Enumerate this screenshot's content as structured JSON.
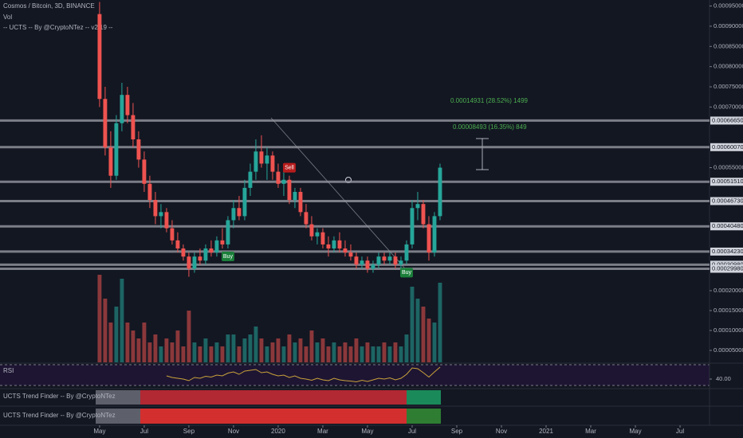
{
  "header": {
    "symbol": "Cosmos / Bitcoin, 3D, BINANCE",
    "vol": "Vol",
    "indicator": "-- UCTS -- By @CryptoNTez -- v2.19 --"
  },
  "chart_data": {
    "type": "candlestick",
    "x": [
      0,
      0.25,
      0.5,
      0.75,
      1,
      1.25,
      1.5,
      1.75,
      2,
      2.25,
      2.5,
      2.75,
      3,
      3.25,
      3.5,
      3.75,
      4,
      4.25,
      4.5,
      4.75,
      5,
      5.25,
      5.5,
      5.75,
      6,
      6.25,
      6.5,
      6.75,
      7,
      7.25,
      7.5,
      7.75,
      8,
      8.25,
      8.5,
      8.75,
      9,
      9.25,
      9.5,
      9.75,
      10,
      10.25,
      10.5,
      10.75,
      11,
      11.25,
      11.5,
      11.75,
      12,
      12.25,
      12.5,
      12.75,
      13,
      13.25,
      13.5,
      13.75,
      14,
      14.25,
      14.5,
      14.75,
      15,
      15.25
    ],
    "open": [
      0.00093,
      0.00072,
      0.0006,
      0.00053,
      0.00066,
      0.00073,
      0.00068,
      0.00062,
      0.00057,
      0.00051,
      0.00047,
      0.00043,
      0.00044,
      0.0004,
      0.00037,
      0.00035,
      0.00033,
      0.0003,
      0.00033,
      0.00032,
      0.00035,
      0.00034,
      0.00037,
      0.00036,
      0.00042,
      0.00045,
      0.00043,
      0.0005,
      0.00054,
      0.00059,
      0.00056,
      0.00058,
      0.00054,
      0.00051,
      0.00052,
      0.00047,
      0.00049,
      0.00044,
      0.00041,
      0.00038,
      0.00039,
      0.00036,
      0.00035,
      0.00037,
      0.00035,
      0.00034,
      0.00033,
      0.00031,
      0.00032,
      0.0003,
      0.00031,
      0.00033,
      0.00032,
      0.00033,
      0.00031,
      0.00032,
      0.00036,
      0.00045,
      0.00046,
      0.00041,
      0.00034,
      0.00043
    ],
    "high": [
      0.00096,
      0.00075,
      0.00064,
      0.00068,
      0.00076,
      0.00075,
      0.00071,
      0.00064,
      0.00059,
      0.00053,
      0.00049,
      0.00046,
      0.00045,
      0.00042,
      0.00039,
      0.00036,
      0.00034,
      0.00034,
      0.00035,
      0.00036,
      0.00037,
      0.00038,
      0.0004,
      0.00043,
      0.00047,
      0.00048,
      0.00052,
      0.00056,
      0.00062,
      0.00063,
      0.0006,
      0.00059,
      0.00056,
      0.00054,
      0.00053,
      0.0005,
      0.0005,
      0.00046,
      0.00043,
      0.0004,
      0.0004,
      0.00038,
      0.00038,
      0.00039,
      0.00037,
      0.00036,
      0.00034,
      0.00033,
      0.00033,
      0.00032,
      0.00034,
      0.00034,
      0.00034,
      0.00034,
      0.00033,
      0.00037,
      0.00047,
      0.00049,
      0.00047,
      0.00043,
      0.00044,
      0.00056
    ],
    "low": [
      0.0007,
      0.00058,
      0.0005,
      0.00052,
      0.00064,
      0.00066,
      0.0006,
      0.00055,
      0.00049,
      0.00045,
      0.00041,
      0.0004,
      0.00039,
      0.00036,
      0.00034,
      0.00032,
      0.00028,
      0.00029,
      0.00031,
      0.00031,
      0.00033,
      0.00033,
      0.00035,
      0.00035,
      0.0004,
      0.00042,
      0.00042,
      0.00048,
      0.00052,
      0.00055,
      0.00052,
      0.00052,
      0.0005,
      0.00048,
      0.00046,
      0.00045,
      0.00043,
      0.0004,
      0.00037,
      0.00036,
      0.00035,
      0.00033,
      0.00034,
      0.00034,
      0.00033,
      0.00032,
      0.0003,
      0.0003,
      0.00029,
      0.00029,
      0.0003,
      0.00031,
      0.00031,
      0.0003,
      0.0003,
      0.00031,
      0.00035,
      0.00042,
      0.0004,
      0.00032,
      0.00033,
      0.00042
    ],
    "close": [
      0.00072,
      0.0006,
      0.00053,
      0.00066,
      0.00073,
      0.00068,
      0.00062,
      0.00057,
      0.00051,
      0.00047,
      0.00043,
      0.00044,
      0.0004,
      0.00037,
      0.00035,
      0.00033,
      0.0003,
      0.00033,
      0.00032,
      0.00035,
      0.00034,
      0.00037,
      0.00036,
      0.00042,
      0.00045,
      0.00043,
      0.0005,
      0.00054,
      0.00059,
      0.00056,
      0.00058,
      0.00054,
      0.00051,
      0.00052,
      0.00047,
      0.00049,
      0.00044,
      0.00041,
      0.00038,
      0.00039,
      0.00036,
      0.00035,
      0.00037,
      0.00035,
      0.00034,
      0.00033,
      0.00031,
      0.00032,
      0.0003,
      0.00031,
      0.00033,
      0.00032,
      0.00033,
      0.00031,
      0.00032,
      0.00036,
      0.00045,
      0.00046,
      0.00041,
      0.00034,
      0.00043,
      0.00055
    ],
    "volume": [
      0.00024,
      0.00018,
      0.00012,
      0.00016,
      0.00023,
      0.00012,
      0.0001,
      8e-05,
      0.00012,
      7e-05,
      9e-05,
      6e-05,
      8e-05,
      7e-05,
      0.0001,
      6e-05,
      0.00015,
      7e-05,
      6e-05,
      8e-05,
      6e-05,
      7e-05,
      6e-05,
      9e-05,
      9e-05,
      6e-05,
      8e-05,
      9e-05,
      0.00011,
      8e-05,
      6e-05,
      7e-05,
      8e-05,
      6e-05,
      9e-05,
      7e-05,
      8e-05,
      6e-05,
      0.0001,
      7e-05,
      8e-05,
      6e-05,
      7e-05,
      6e-05,
      7e-05,
      6e-05,
      8e-05,
      6e-05,
      7e-05,
      6e-05,
      6e-05,
      7e-05,
      6e-05,
      7e-05,
      6e-05,
      9e-05,
      0.00021,
      0.00018,
      0.00016,
      0.00013,
      0.00012,
      0.00022
    ],
    "up_color": "#26a69a",
    "down_color": "#ef5350",
    "xlim": [
      -4.46,
      27.32
    ],
    "xticks": [
      {
        "value": 0,
        "label": "May"
      },
      {
        "value": 2,
        "label": "Jul"
      },
      {
        "value": 4,
        "label": "Sep"
      },
      {
        "value": 6,
        "label": "Nov"
      },
      {
        "value": 8,
        "label": "2020"
      },
      {
        "value": 10,
        "label": "Mar"
      },
      {
        "value": 12,
        "label": "May"
      },
      {
        "value": 14,
        "label": "Jul"
      },
      {
        "value": 16,
        "label": "Sep"
      },
      {
        "value": 18,
        "label": "Nov"
      },
      {
        "value": 20,
        "label": "2021"
      },
      {
        "value": 22,
        "label": "Mar"
      },
      {
        "value": 24,
        "label": "May"
      },
      {
        "value": 26,
        "label": "Jul"
      }
    ],
    "ylim": [
      0.000285,
      0.000955
    ],
    "yticks": [
      {
        "value": 0.00095,
        "label": "0.00095000"
      },
      {
        "value": 0.0009,
        "label": "0.00090000"
      },
      {
        "value": 0.00085,
        "label": "0.00085000"
      },
      {
        "value": 0.0008,
        "label": "0.00080000"
      },
      {
        "value": 0.00075,
        "label": "0.00075000"
      },
      {
        "value": 0.0007,
        "label": "0.00070000"
      },
      {
        "value": 0.00055,
        "label": "0.00055000"
      }
    ],
    "levels": [
      {
        "value": 0.0006665,
        "label": "0.00066650"
      },
      {
        "value": 0.0006007,
        "label": "0.00060070"
      },
      {
        "value": 0.0005151,
        "label": "0.00051510"
      },
      {
        "value": 0.0004673,
        "label": "0.00046730"
      },
      {
        "value": 0.0004048,
        "label": "0.00040480"
      },
      {
        "value": 0.0003423,
        "label": "0.00034230"
      },
      {
        "value": 0.0003098,
        "label": "0.00030980"
      },
      {
        "value": 0.0002998,
        "label": "0.00029980"
      }
    ],
    "vlim": [
      2e-05,
      0.00025
    ],
    "vticks": [
      {
        "value": 0.0002,
        "label": "0.00020000"
      },
      {
        "value": 0.00015,
        "label": "0.00015000"
      },
      {
        "value": 0.0001,
        "label": "0.00010000"
      },
      {
        "value": 5e-05,
        "label": "0.00005000"
      }
    ],
    "signals": [
      "Buy",
      "Sell",
      "Buy"
    ],
    "measures": [
      "0.00014931 (28.52%) 1499",
      "0.00008493 (16.35%) 849"
    ]
  },
  "rsi": {
    "title": "RSI",
    "color": "#c9a23a",
    "ylim": [
      20,
      80
    ],
    "yticks": [
      {
        "value": 40,
        "label": "40.00"
      }
    ],
    "values": [
      null,
      null,
      null,
      null,
      null,
      null,
      null,
      null,
      null,
      null,
      null,
      null,
      48,
      44,
      42,
      40,
      36,
      44,
      42,
      47,
      45,
      50,
      48,
      55,
      58,
      52,
      60,
      62,
      64,
      56,
      58,
      52,
      48,
      50,
      44,
      48,
      42,
      40,
      37,
      42,
      38,
      36,
      42,
      38,
      36,
      35,
      33,
      37,
      34,
      38,
      42,
      40,
      43,
      38,
      42,
      52,
      68,
      66,
      56,
      45,
      58,
      70
    ]
  },
  "trend_finders": [
    "UCTS Trend Finder -- By @CryptoNTez",
    "UCTS Trend Finder -- By @CryptoNTez"
  ]
}
